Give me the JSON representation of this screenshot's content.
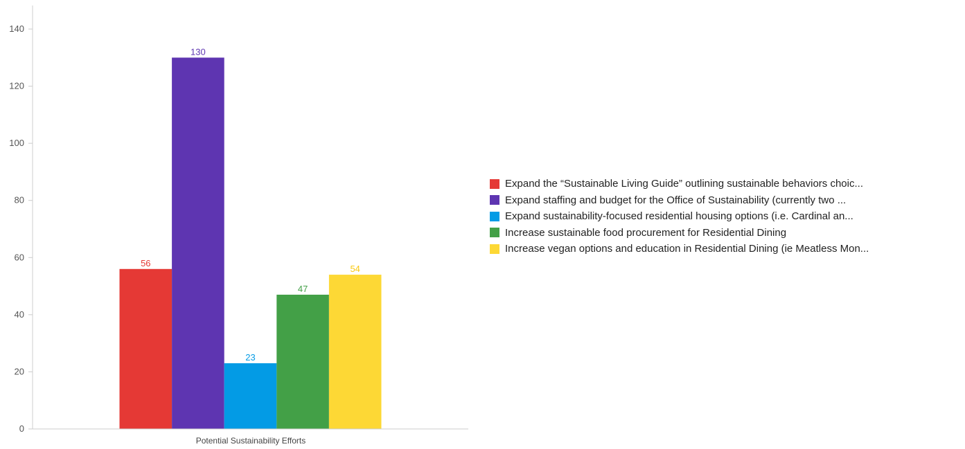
{
  "chart_data": {
    "type": "bar",
    "title": "",
    "xlabel": "Potential Sustainability Efforts",
    "ylabel": "",
    "ylim": [
      0,
      140
    ],
    "yticks": [
      0,
      20,
      40,
      60,
      80,
      100,
      120,
      140
    ],
    "grid": false,
    "legend_position": "right",
    "categories": [
      "Potential Sustainability Efforts"
    ],
    "series": [
      {
        "name": "Expand the “Sustainable Living Guide” outlining sustainable behaviors choic...",
        "values": [
          56
        ],
        "color": "#e53935"
      },
      {
        "name": "Expand staffing and budget for the Office of Sustainability (currently two ...",
        "values": [
          130
        ],
        "color": "#5e35b1"
      },
      {
        "name": "Expand sustainability-focused residential housing options (i.e. Cardinal an...",
        "values": [
          23
        ],
        "color": "#039be5"
      },
      {
        "name": "Increase sustainable food procurement for Residential Dining",
        "values": [
          47
        ],
        "color": "#43a047"
      },
      {
        "name": "Increase vegan options and education in Residential Dining (ie Meatless Mon...",
        "values": [
          54
        ],
        "color": "#fdd835"
      }
    ]
  }
}
